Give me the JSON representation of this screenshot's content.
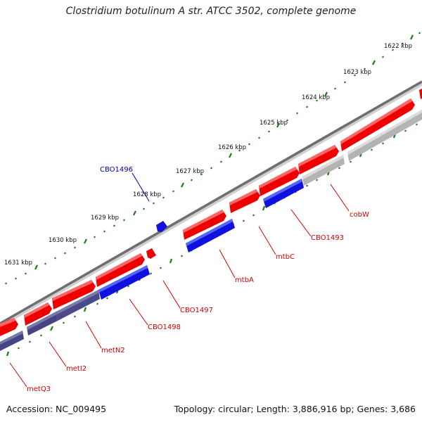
{
  "title": "Clostridium botulinum A str. ATCC 3502, complete genome",
  "footer": {
    "accession": "Accession: NC_009495",
    "summary": "Topology: circular; Length: 3,886,916 bp; Genes: 3,686"
  },
  "ticks": [
    "1622 kbp",
    "1623 kbp",
    "1624 kbp",
    "1625 kbp",
    "1626 kbp",
    "1627 kbp",
    "1628 kbp",
    "1629 kbp",
    "1630 kbp",
    "1631 kbp"
  ],
  "gene_labels": [
    {
      "text": "cobW",
      "color": "#cc0000"
    },
    {
      "text": "CBO1493",
      "color": "#cc0000"
    },
    {
      "text": "mtbC",
      "color": "#cc0000"
    },
    {
      "text": "mtbA",
      "color": "#cc0000"
    },
    {
      "text": "CBO1497",
      "color": "#cc0000"
    },
    {
      "text": "CBO1498",
      "color": "#cc0000"
    },
    {
      "text": "metN2",
      "color": "#cc0000"
    },
    {
      "text": "metI2",
      "color": "#cc0000"
    },
    {
      "text": "metQ3",
      "color": "#cc0000"
    },
    {
      "text": "CBO1496",
      "color": "#0000aa"
    }
  ],
  "colors": {
    "forward_cds": "#ee0000",
    "blue_track": "#1111dd",
    "slate_track": "#4a4a8a",
    "grey_track": "#b8b8b8",
    "tick_green": "#1a7a1a",
    "backbone": "#777777"
  }
}
